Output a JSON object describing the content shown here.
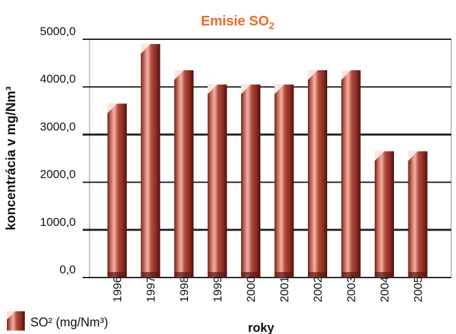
{
  "chart_data": {
    "type": "bar",
    "title": "Emisie SO",
    "title_subscript": "2",
    "ylabel": "koncentrácia v mg/Nm³",
    "xlabel": "roky",
    "categories": [
      "1996",
      "1997",
      "1998",
      "1999",
      "2000",
      "2001",
      "2002",
      "2003",
      "2004",
      "2005"
    ],
    "series": [
      {
        "name": "SO² (mg/Nm³)",
        "values": [
          3650,
          4900,
          4350,
          4050,
          4050,
          4050,
          4350,
          4350,
          2650,
          2650
        ]
      }
    ],
    "ylim": [
      0,
      5000
    ],
    "yticks": [
      "0,0",
      "1000,0",
      "2000,0",
      "3000,0",
      "4000,0",
      "5000,0"
    ],
    "grid": true,
    "legend_position": "bottom-left",
    "colors": {
      "bar_main": "#9c3b32",
      "bar_highlight": "#e6a194",
      "bar_shadow": "#4a1410",
      "title": "#ef6a2a",
      "grid_major": "#222222",
      "grid_minor": "#444444"
    }
  }
}
